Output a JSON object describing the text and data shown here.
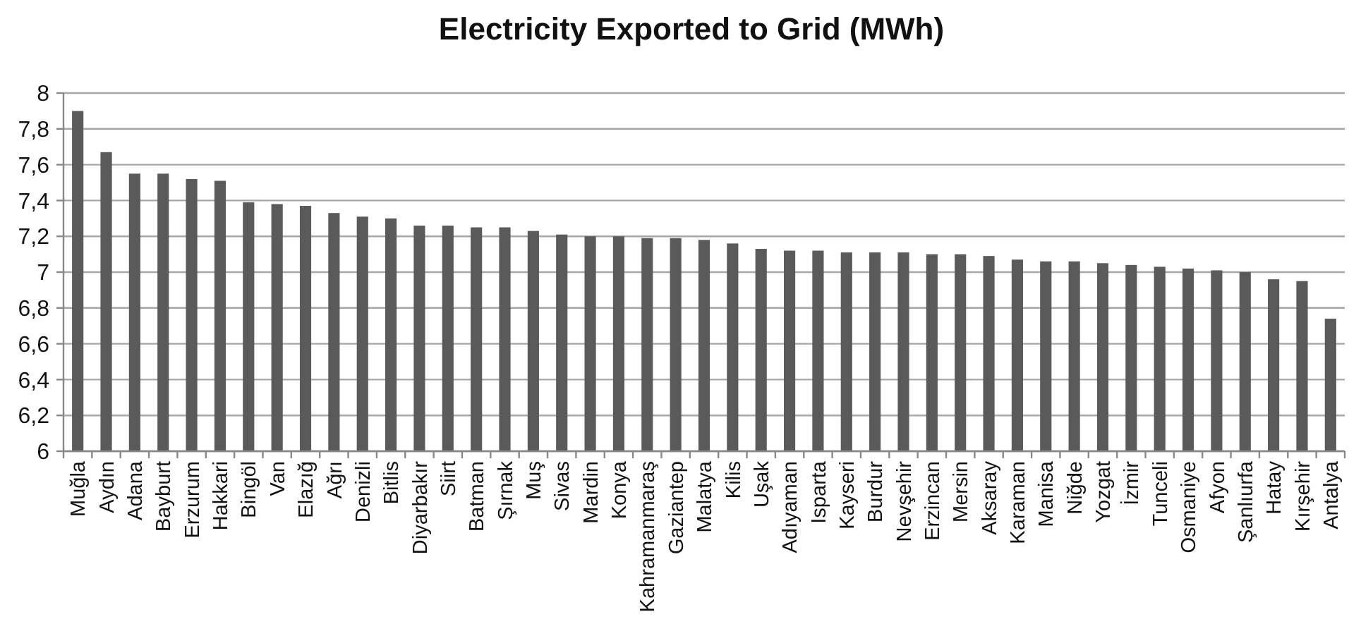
{
  "chart_data": {
    "type": "bar",
    "title": "Electricity Exported to Grid (MWh)",
    "categories": [
      "Muğla",
      "Aydın",
      "Adana",
      "Bayburt",
      "Erzurum",
      "Hakkari",
      "Bingöl",
      "Van",
      "Elazığ",
      "Ağrı",
      "Denizli",
      "Bitlis",
      "Diyarbakır",
      "Siirt",
      "Batman",
      "Şırnak",
      "Muş",
      "Sivas",
      "Mardin",
      "Konya",
      "Kahramanmaraş",
      "Gaziantep",
      "Malatya",
      "Kilis",
      "Uşak",
      "Adıyaman",
      "Isparta",
      "Kayseri",
      "Burdur",
      "Nevşehir",
      "Erzincan",
      "Mersin",
      "Aksaray",
      "Karaman",
      "Manisa",
      "Niğde",
      "Yozgat",
      "İzmir",
      "Tunceli",
      "Osmaniye",
      "Afyon",
      "Şanlıurfa",
      "Hatay",
      "Kırşehir",
      "Antalya"
    ],
    "values": [
      7.9,
      7.67,
      7.55,
      7.55,
      7.52,
      7.51,
      7.39,
      7.38,
      7.37,
      7.33,
      7.31,
      7.3,
      7.26,
      7.26,
      7.25,
      7.25,
      7.23,
      7.21,
      7.2,
      7.2,
      7.19,
      7.19,
      7.18,
      7.16,
      7.13,
      7.12,
      7.12,
      7.11,
      7.11,
      7.11,
      7.1,
      7.1,
      7.09,
      7.07,
      7.06,
      7.06,
      7.05,
      7.04,
      7.03,
      7.02,
      7.01,
      7.0,
      6.96,
      6.95,
      6.74
    ],
    "color": "#5a5a5a",
    "ylim": [
      6,
      8
    ],
    "yticks": [
      6,
      {
        "value": 6.2,
        "label": "6,2"
      },
      {
        "value": 6.4,
        "label": "6,4"
      },
      {
        "value": 6.6,
        "label": "6,6"
      },
      {
        "value": 6.8,
        "label": "6,8"
      },
      7,
      {
        "value": 7.2,
        "label": "7,2"
      },
      {
        "value": 7.4,
        "label": "7,4"
      },
      {
        "value": 7.6,
        "label": "7,6"
      },
      {
        "value": 7.8,
        "label": "7,8"
      },
      8
    ],
    "grid": "y"
  }
}
